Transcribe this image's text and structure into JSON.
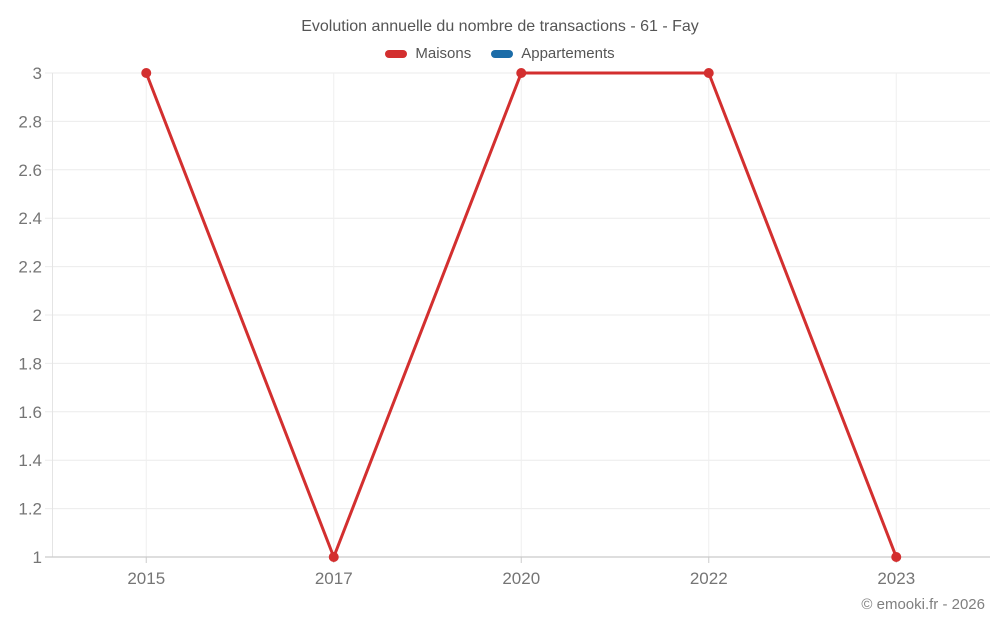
{
  "chart_data": {
    "type": "line",
    "title": "Evolution annuelle du nombre de transactions - 61 - Fay",
    "categories": [
      "2015",
      "2017",
      "2020",
      "2022",
      "2023"
    ],
    "series": [
      {
        "name": "Maisons",
        "color": "#d32f2f",
        "values": [
          3,
          1,
          3,
          3,
          1
        ]
      },
      {
        "name": "Appartements",
        "color": "#1b6ca8",
        "values": []
      }
    ],
    "xlabel": "",
    "ylabel": "",
    "ylim": [
      1,
      3
    ],
    "yticks": [
      "1",
      "1.2",
      "1.4",
      "1.6",
      "1.8",
      "2",
      "2.2",
      "2.4",
      "2.6",
      "2.8",
      "3"
    ],
    "grid": true,
    "legend_position": "top"
  },
  "footer": {
    "text": "© emooki.fr - 2026"
  }
}
